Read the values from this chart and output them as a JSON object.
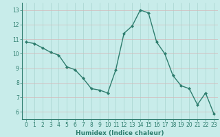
{
  "x": [
    0,
    1,
    2,
    3,
    4,
    5,
    6,
    7,
    8,
    9,
    10,
    11,
    12,
    13,
    14,
    15,
    16,
    17,
    18,
    19,
    20,
    21,
    22,
    23
  ],
  "y": [
    10.8,
    10.7,
    10.4,
    10.1,
    9.9,
    9.1,
    8.9,
    8.3,
    7.6,
    7.5,
    7.3,
    8.9,
    11.4,
    11.9,
    13.0,
    12.8,
    10.8,
    10.0,
    8.5,
    7.8,
    7.6,
    6.5,
    7.3,
    5.9
  ],
  "line_color": "#2e7d6e",
  "marker": "D",
  "marker_size": 2.0,
  "bg_color": "#c8ecea",
  "grid_color_x": "#a8d4d0",
  "grid_color_y": "#d4b8b8",
  "xlabel": "Humidex (Indice chaleur)",
  "xlim": [
    -0.5,
    23.5
  ],
  "ylim": [
    5.5,
    13.5
  ],
  "xtick_labels": [
    "0",
    "1",
    "2",
    "3",
    "4",
    "5",
    "6",
    "7",
    "8",
    "9",
    "10",
    "11",
    "12",
    "13",
    "14",
    "15",
    "16",
    "17",
    "18",
    "19",
    "20",
    "21",
    "22",
    "23"
  ],
  "ytick_values": [
    6,
    7,
    8,
    9,
    10,
    11,
    12,
    13
  ],
  "xlabel_fontsize": 6.5,
  "tick_fontsize": 5.5,
  "linewidth": 1.0
}
